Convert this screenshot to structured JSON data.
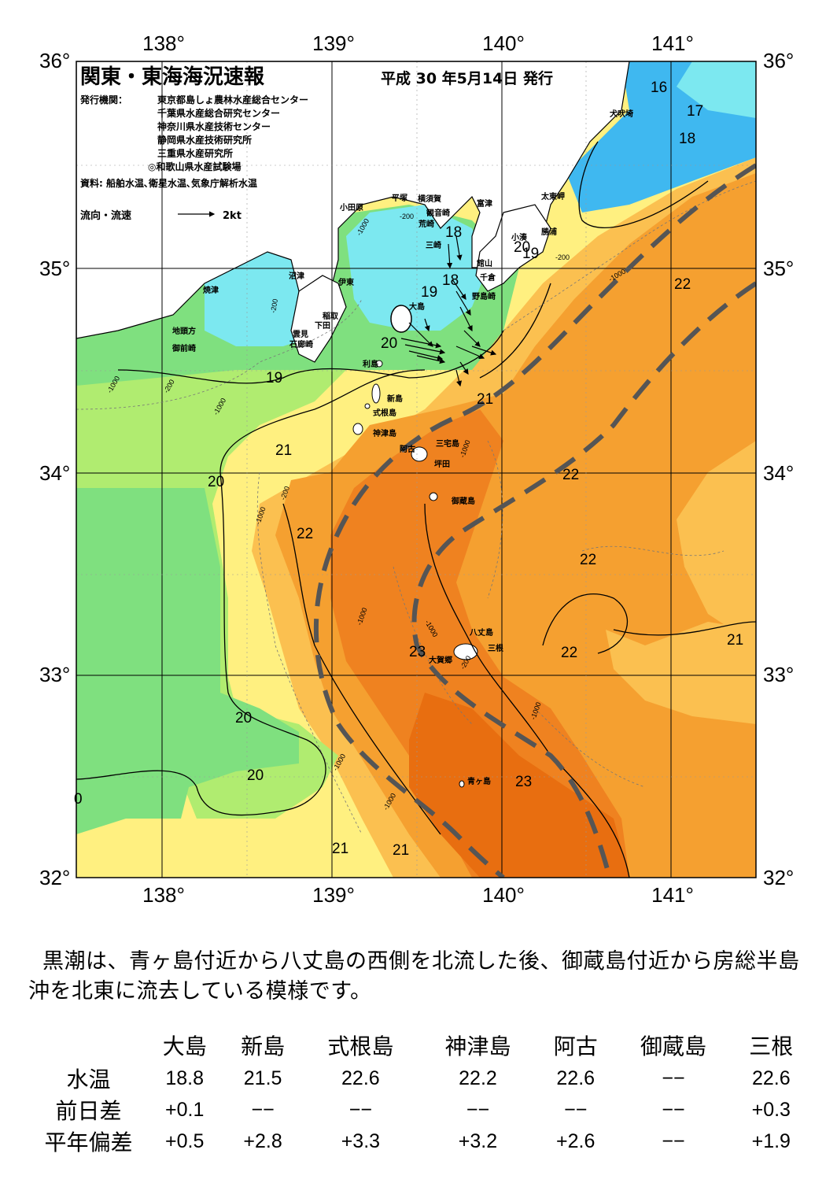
{
  "header": {
    "title": "関東・東海海況速報",
    "date": "平成 30 年5月14日 発行",
    "issuer_label": "発行機関：",
    "issuers": [
      "東京都島しょ農林水産総合センター",
      "千葉県水産総合研究センター",
      "神奈川県水産技術センター",
      "静岡県水産技術研究所",
      "三重県水産研究所",
      "◎和歌山県水産試験場"
    ],
    "source": "資料: 船舶水温､衛星水温､気象庁解析水温",
    "flow_legend": "流向・流速",
    "flow_scale": "2kt"
  },
  "axes": {
    "lon_labels": [
      "138°",
      "139°",
      "140°",
      "141°"
    ],
    "lat_labels": [
      "36°",
      "35°",
      "34°",
      "33°",
      "32°"
    ]
  },
  "colors": {
    "cold_blue": "#3fb8f0",
    "cyan": "#7ce8f0",
    "green": "#7fe07f",
    "light_green": "#b0ec70",
    "yellow": "#fff080",
    "light_orange": "#fbc050",
    "orange": "#f5a030",
    "dark_orange": "#ef8220",
    "deep_orange": "#e86e10",
    "land": "#ffffff",
    "kuroshio_axis": "#555555"
  },
  "place_names": {
    "inubo": "犬吠埼",
    "taitou": "太東岬",
    "katsuura": "勝浦",
    "kominato": "小湊",
    "futtsu": "富津",
    "kannonzaki": "観音崎",
    "yokosuka": "横須賀",
    "hiratsuka": "平塚",
    "odawara": "小田原",
    "araizaki": "荒崎",
    "misaki": "三崎",
    "tateyama": "館山",
    "chikura": "千倉",
    "nojimazaki": "野島崎",
    "numazu": "沼津",
    "ito": "伊東",
    "yaizu": "焼津",
    "inatori": "稲取",
    "shimoda": "下田",
    "mikawa": "雲見",
    "irozaki": "石廊崎",
    "jitokata": "地頭方",
    "omaezaki": "御前崎",
    "oshima": "大島",
    "toshima": "利島",
    "niijima": "新島",
    "shikine": "式根島",
    "kozu": "神津島",
    "miyake": "三宅島",
    "ako": "阿古",
    "tsubota": "坪田",
    "mikura": "御蔵島",
    "hachijo": "八丈島",
    "mitsune": "三根",
    "okago": "大賀郷",
    "aogashima": "青ヶ島"
  },
  "isotherm_labels": [
    "16",
    "17",
    "18",
    "18",
    "18",
    "20",
    "19",
    "19",
    "20",
    "19",
    "21",
    "20",
    "21",
    "22",
    "22",
    "22",
    "22",
    "21",
    "23",
    "23",
    "20",
    "20",
    "21",
    "21",
    "23",
    "0"
  ],
  "depth_labels": [
    "-200",
    "-1000",
    "-1000",
    "-200",
    "-200",
    "-1000",
    "-200",
    "-1000",
    "-1000",
    "-200",
    "-1000",
    "-1000",
    "-1000",
    "-1000",
    "-1000",
    "-1000",
    "-1000",
    "-1000",
    "-200",
    "-200",
    "-1000",
    "-1000"
  ],
  "description": {
    "line1": "黒潮は、青ヶ島付近から八丈島の西側を北流した後、御蔵島付近から房総半島",
    "line2": "沖を北東に流去している模様です。"
  },
  "stats": {
    "columns": [
      "大島",
      "新島",
      "式根島",
      "神津島",
      "阿古",
      "御蔵島",
      "三根"
    ],
    "rows": [
      {
        "label": "水温",
        "values": [
          "18.8",
          "21.5",
          "22.6",
          "22.2",
          "22.6",
          "−−",
          "22.6"
        ]
      },
      {
        "label": "前日差",
        "values": [
          "+0.1",
          "−−",
          "−−",
          "−−",
          "−−",
          "−−",
          "+0.3"
        ]
      },
      {
        "label": "平年偏差",
        "values": [
          "+0.5",
          "+2.8",
          "+3.3",
          "+3.2",
          "+2.6",
          "−−",
          "+1.9"
        ]
      }
    ]
  }
}
